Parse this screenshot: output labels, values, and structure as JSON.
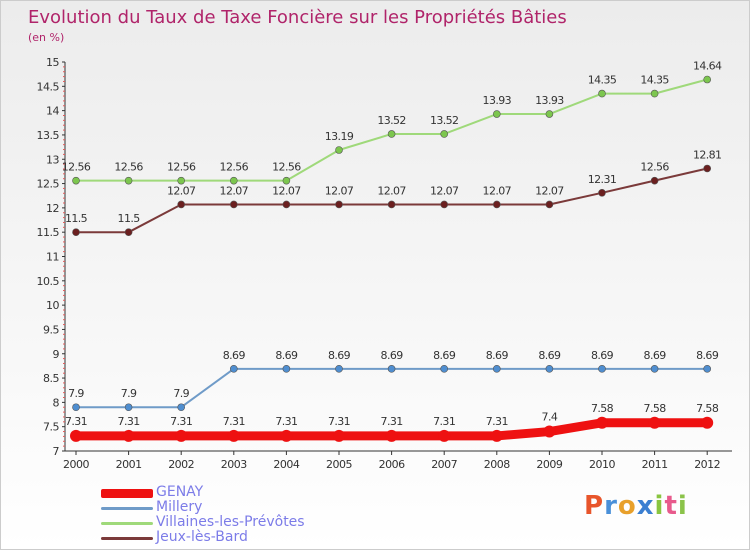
{
  "title": "Evolution du Taux de Taxe Foncière sur les Propriétés Bâties",
  "unit_label": "(en %)",
  "logo": {
    "text": "Proxiti",
    "letters": [
      {
        "ch": "P",
        "color": "#e8552b"
      },
      {
        "ch": "r",
        "color": "#4a90d9"
      },
      {
        "ch": "o",
        "color": "#e8a02b"
      },
      {
        "ch": "x",
        "color": "#3b7fd1"
      },
      {
        "ch": "i",
        "color": "#89c540"
      },
      {
        "ch": "t",
        "color": "#e85a8c"
      },
      {
        "ch": "i",
        "color": "#8bc34a"
      }
    ]
  },
  "chart_data": {
    "type": "line",
    "x": [
      2000,
      2001,
      2002,
      2003,
      2004,
      2005,
      2006,
      2007,
      2008,
      2009,
      2010,
      2011,
      2012
    ],
    "ylim": [
      7,
      15
    ],
    "yticks": [
      "7",
      "7.5",
      "8",
      "8.5",
      "9",
      "9.5",
      "10",
      "10.5",
      "11",
      "11.5",
      "12",
      "12.5",
      "13",
      "13.5",
      "14",
      "14.5",
      "15"
    ],
    "grid": false,
    "legend_position": "bottom-left",
    "series": [
      {
        "name": "GENAY",
        "color": "#ee1111",
        "marker": "#ee1111",
        "values": [
          7.31,
          7.31,
          7.31,
          7.31,
          7.31,
          7.31,
          7.31,
          7.31,
          7.31,
          7.4,
          7.58,
          7.58,
          7.58
        ],
        "labels": [
          "7.31",
          "7.31",
          "7.31",
          "7.31",
          "7.31",
          "7.31",
          "7.31",
          "7.31",
          "7.31",
          "7.4",
          "7.58",
          "7.58",
          "7.58"
        ]
      },
      {
        "name": "Millery",
        "color": "#6f9bc8",
        "marker": "#4f8ed0",
        "values": [
          7.9,
          7.9,
          7.9,
          8.69,
          8.69,
          8.69,
          8.69,
          8.69,
          8.69,
          8.69,
          8.69,
          8.69,
          8.69
        ],
        "labels": [
          "7.9",
          "7.9",
          "7.9",
          "8.69",
          "8.69",
          "8.69",
          "8.69",
          "8.69",
          "8.69",
          "8.69",
          "8.69",
          "8.69",
          "8.69"
        ]
      },
      {
        "name": "Villaines-les-Prévôtes",
        "color": "#9fd97a",
        "marker": "#7cc64e",
        "values": [
          12.56,
          12.56,
          12.56,
          12.56,
          12.56,
          13.19,
          13.52,
          13.52,
          13.93,
          13.93,
          14.35,
          14.35,
          14.64
        ],
        "labels": [
          "12.56",
          "12.56",
          "12.56",
          "12.56",
          "12.56",
          "13.19",
          "13.52",
          "13.52",
          "13.93",
          "13.93",
          "14.35",
          "14.35",
          "14.64"
        ]
      },
      {
        "name": "Jeux-lès-Bard",
        "color": "#7b3a3a",
        "marker": "#6b1f1f",
        "values": [
          11.5,
          11.5,
          12.07,
          12.07,
          12.07,
          12.07,
          12.07,
          12.07,
          12.07,
          12.07,
          12.31,
          12.56,
          12.81
        ],
        "labels": [
          "11.5",
          "11.5",
          "12.07",
          "12.07",
          "12.07",
          "12.07",
          "12.07",
          "12.07",
          "12.07",
          "12.07",
          "12.31",
          "12.56",
          "12.81"
        ]
      }
    ]
  }
}
